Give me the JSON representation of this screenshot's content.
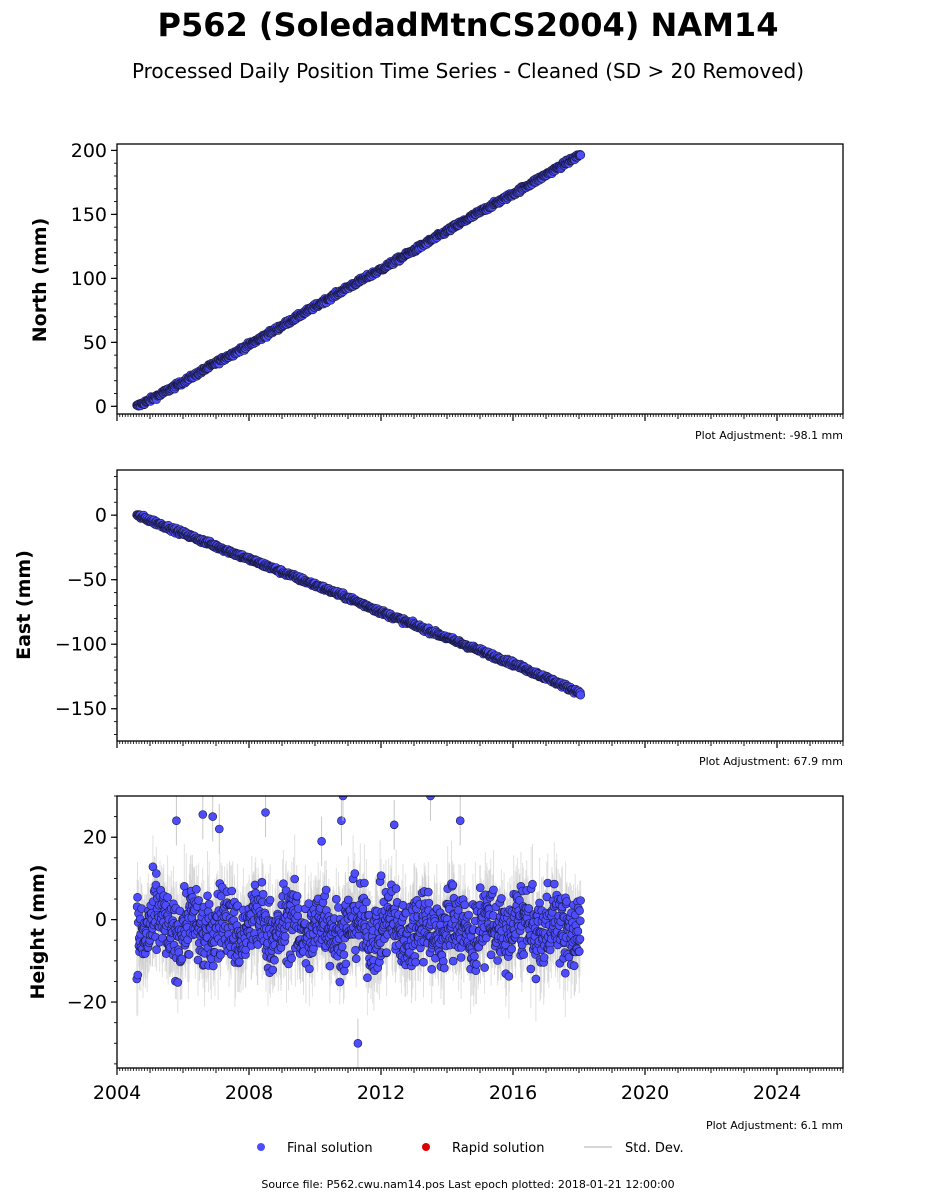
{
  "title": "P562 (SoledadMtnCS2004) NAM14",
  "subtitle": "Processed Daily Position Time Series - Cleaned (SD > 20 Removed)",
  "footer": "Source file: P562.cwu.nam14.pos  Last epoch plotted: 2018-01-21 12:00:00",
  "legend": {
    "final": "Final solution",
    "rapid": "Rapid solution",
    "std": "Std. Dev."
  },
  "colors": {
    "final": "#4d4dff",
    "final_edge": "#1a1a40",
    "rapid": "#dd0000",
    "std": "#c8c8c8"
  },
  "chart_data": [
    {
      "type": "scatter",
      "ylabel": "North (mm)",
      "adjustment": "Plot Adjustment: -98.1 mm",
      "xlim": [
        2004,
        2026
      ],
      "ylim": [
        -6,
        205
      ],
      "yticks": [
        0,
        50,
        100,
        150,
        200
      ],
      "yminor_step": 10,
      "series": [
        {
          "x": [
            2004.6,
            2005.0,
            2006.0,
            2007.0,
            2008.0,
            2009.0,
            2010.0,
            2011.0,
            2012.0,
            2013.0,
            2014.0,
            2015.0,
            2016.0,
            2017.0,
            2018.05
          ],
          "y": [
            0,
            5,
            19,
            34,
            48,
            63,
            78,
            93,
            107,
            122,
            137,
            152,
            166,
            181,
            197
          ]
        }
      ]
    },
    {
      "type": "scatter",
      "ylabel": "East (mm)",
      "adjustment": "Plot Adjustment: 67.9 mm",
      "xlim": [
        2004,
        2026
      ],
      "ylim": [
        -175,
        35
      ],
      "yticks": [
        0,
        -50,
        -100,
        -150
      ],
      "yminor_step": 10,
      "series": [
        {
          "x": [
            2004.6,
            2005.0,
            2006.0,
            2007.0,
            2008.0,
            2009.0,
            2010.0,
            2011.0,
            2012.0,
            2013.0,
            2014.0,
            2015.0,
            2016.0,
            2017.0,
            2018.05
          ],
          "y": [
            0,
            -4,
            -14,
            -24,
            -34,
            -44,
            -54,
            -64,
            -75,
            -85,
            -95,
            -105,
            -115,
            -126,
            -138
          ]
        }
      ]
    },
    {
      "type": "scatter",
      "ylabel": "Height (mm)",
      "adjustment": "Plot Adjustment: 6.1 mm",
      "xlim": [
        2004,
        2026
      ],
      "ylim": [
        -36,
        30
      ],
      "yticks": [
        20,
        0,
        -20
      ],
      "yminor_step": 5,
      "xticks": [
        2004,
        2008,
        2012,
        2016,
        2020,
        2024
      ],
      "series": [
        {
          "x_range": [
            2004.6,
            2018.05
          ],
          "mean": -2,
          "spread": 6,
          "outliers": [
            [
              2005.8,
              24
            ],
            [
              2006.6,
              25.5
            ],
            [
              2006.9,
              25
            ],
            [
              2007.1,
              22
            ],
            [
              2008.5,
              26
            ],
            [
              2010.2,
              19
            ],
            [
              2010.8,
              24
            ],
            [
              2010.85,
              30
            ],
            [
              2012.4,
              23
            ],
            [
              2013.5,
              30
            ],
            [
              2014.4,
              24
            ],
            [
              2011.3,
              -30
            ]
          ]
        }
      ]
    }
  ]
}
